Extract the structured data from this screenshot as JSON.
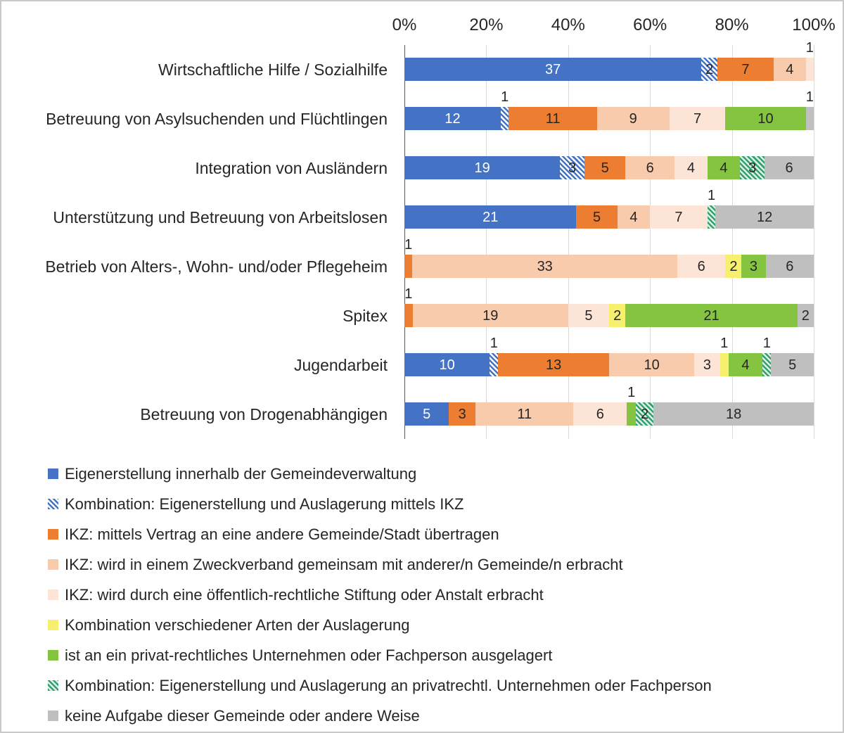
{
  "chart_data": {
    "type": "bar",
    "variant": "stacked-100-horizontal",
    "x_axis": {
      "position": "top",
      "ticks": [
        "0%",
        "20%",
        "40%",
        "60%",
        "80%",
        "100%"
      ],
      "tick_values": [
        0,
        20,
        40,
        60,
        80,
        100
      ],
      "range": [
        0,
        100
      ],
      "grid": true
    },
    "categories": [
      "Wirtschaftliche Hilfe / Sozialhilfe",
      "Betreuung von Asylsuchenden und Flüchtlingen",
      "Integration von Ausländern",
      "Unterstützung und Betreuung von Arbeitslosen",
      "Betrieb von Alters-, Wohn- und/oder Pflegeheim",
      "Spitex",
      "Jugendarbeit",
      "Betreuung von Drogenabhängigen"
    ],
    "series": [
      {
        "name": "Eigenerstellung innerhalb der Gemeindeverwaltung",
        "color": "#4472C4",
        "pattern": "solid",
        "label_color": "#FFFFFF"
      },
      {
        "name": "Kombination: Eigenerstellung und Auslagerung mittels IKZ",
        "color": "#4472C4",
        "pattern": "hatch-blue",
        "label_color": "#262626"
      },
      {
        "name": "IKZ: mittels Vertrag an eine andere Gemeinde/Stadt übertragen",
        "color": "#ED7D31",
        "pattern": "solid",
        "label_color": "#262626"
      },
      {
        "name": "IKZ: wird in einem Zweckverband gemeinsam mit anderer/n Gemeinde/n erbracht",
        "color": "#F8CBAD",
        "pattern": "solid",
        "label_color": "#262626"
      },
      {
        "name": "IKZ: wird durch eine öffentlich-rechtliche Stiftung oder Anstalt erbracht",
        "color": "#FCE4D6",
        "pattern": "solid",
        "label_color": "#262626"
      },
      {
        "name": "Kombination verschiedener Arten der Auslagerung",
        "color": "#F6F06E",
        "pattern": "solid",
        "label_color": "#262626"
      },
      {
        "name": "ist an ein privat-rechtliches Unternehmen oder Fachperson ausgelagert",
        "color": "#85C441",
        "pattern": "solid",
        "label_color": "#262626"
      },
      {
        "name": "Kombination: Eigenerstellung und Auslagerung an privatrechtl. Unternehmen oder Fachperson",
        "color": "#85C441",
        "pattern": "hatch-green",
        "label_color": "#262626"
      },
      {
        "name": "keine Aufgabe dieser Gemeinde oder andere Weise",
        "color": "#BFBFBF",
        "pattern": "solid",
        "label_color": "#262626"
      }
    ],
    "values": [
      [
        37,
        2,
        7,
        4,
        1,
        0,
        0,
        0,
        0
      ],
      [
        12,
        1,
        11,
        9,
        7,
        0,
        10,
        0,
        1
      ],
      [
        19,
        3,
        5,
        6,
        4,
        0,
        4,
        3,
        6
      ],
      [
        21,
        0,
        5,
        4,
        7,
        0,
        0,
        1,
        12
      ],
      [
        0,
        0,
        1,
        33,
        6,
        2,
        3,
        0,
        6
      ],
      [
        0,
        0,
        1,
        19,
        5,
        2,
        21,
        0,
        2
      ],
      [
        10,
        1,
        13,
        10,
        3,
        1,
        4,
        1,
        5
      ],
      [
        5,
        0,
        3,
        11,
        6,
        0,
        1,
        2,
        18
      ]
    ],
    "legend_position": "bottom-left",
    "small_segment_label_rule": "values narrower than 3% are labeled above the bar"
  }
}
